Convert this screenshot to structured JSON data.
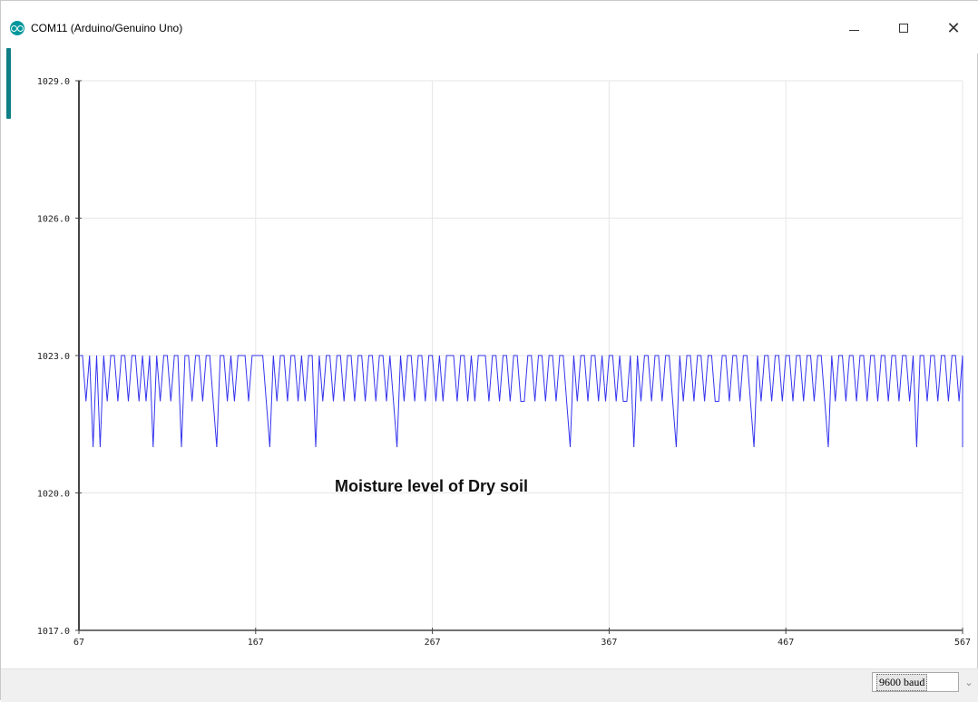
{
  "window": {
    "title": "COM11 (Arduino/Genuino Uno)",
    "icon": "arduino-logo-icon",
    "controls": {
      "minimize": "minimize-icon",
      "maximize": "maximize-icon",
      "close": "close-icon"
    }
  },
  "footer": {
    "baud_selected": "9600 baud",
    "dropdown_icon": "chevron-down-icon"
  },
  "colors": {
    "series": "#3333ee",
    "axis": "#444444",
    "grid": "#e6e6e6"
  },
  "chart_data": {
    "type": "line",
    "annotation": "Moisture level of Dry soil",
    "xlim": [
      67,
      567
    ],
    "ylim": [
      1017.0,
      1029.0
    ],
    "x_ticks": [
      67,
      167,
      267,
      367,
      467,
      567
    ],
    "x_tick_labels": [
      "67",
      "167",
      "267",
      "367",
      "467",
      "567"
    ],
    "y_ticks": [
      1017.0,
      1020.0,
      1023.0,
      1026.0,
      1029.0
    ],
    "y_tick_labels": [
      "1017.0",
      "1020.0",
      "1023.0",
      "1026.0",
      "1029.0"
    ],
    "grid": true,
    "series": [
      {
        "x_start": 67,
        "x_step": 2,
        "values": [
          1023,
          1023,
          1022,
          1023,
          1021,
          1023,
          1021,
          1023,
          1022,
          1023,
          1023,
          1022,
          1023,
          1023,
          1022,
          1023,
          1023,
          1022,
          1023,
          1022,
          1023,
          1021,
          1023,
          1022,
          1023,
          1023,
          1022,
          1023,
          1023,
          1021,
          1023,
          1023,
          1022,
          1023,
          1023,
          1022,
          1023,
          1023,
          1022,
          1021,
          1023,
          1023,
          1022,
          1023,
          1022,
          1023,
          1023,
          1023,
          1022,
          1023,
          1023,
          1023,
          1023,
          1022,
          1021,
          1023,
          1022,
          1023,
          1023,
          1022,
          1023,
          1023,
          1022,
          1023,
          1022,
          1023,
          1023,
          1021,
          1023,
          1022,
          1023,
          1023,
          1022,
          1023,
          1023,
          1022,
          1023,
          1023,
          1022,
          1023,
          1023,
          1022,
          1023,
          1023,
          1022,
          1023,
          1023,
          1022,
          1023,
          1022,
          1021,
          1023,
          1022,
          1023,
          1023,
          1022,
          1023,
          1023,
          1022,
          1023,
          1023,
          1022,
          1023,
          1022,
          1023,
          1023,
          1023,
          1022,
          1023,
          1023,
          1022,
          1023,
          1022,
          1023,
          1023,
          1023,
          1022,
          1023,
          1023,
          1022,
          1023,
          1023,
          1022,
          1023,
          1023,
          1022,
          1022,
          1023,
          1023,
          1022,
          1023,
          1023,
          1022,
          1023,
          1023,
          1022,
          1023,
          1023,
          1022,
          1021,
          1023,
          1022,
          1023,
          1023,
          1022,
          1023,
          1023,
          1022,
          1023,
          1022,
          1023,
          1023,
          1022,
          1023,
          1022,
          1022,
          1023,
          1021,
          1023,
          1022,
          1023,
          1023,
          1022,
          1023,
          1023,
          1022,
          1023,
          1023,
          1022,
          1021,
          1023,
          1022,
          1023,
          1023,
          1022,
          1023,
          1023,
          1022,
          1023,
          1023,
          1022,
          1022,
          1023,
          1023,
          1022,
          1023,
          1023,
          1022,
          1023,
          1023,
          1022,
          1021,
          1023,
          1022,
          1023,
          1023,
          1022,
          1023,
          1023,
          1022,
          1023,
          1023,
          1022,
          1023,
          1023,
          1022,
          1023,
          1023,
          1022,
          1023,
          1023,
          1022,
          1021,
          1023,
          1022,
          1023,
          1023,
          1022,
          1023,
          1023,
          1022,
          1023,
          1023,
          1022,
          1023,
          1023,
          1022,
          1023,
          1023,
          1022,
          1023,
          1023,
          1022,
          1023,
          1023,
          1022,
          1023,
          1021,
          1023,
          1023,
          1022,
          1023,
          1023,
          1022,
          1023,
          1023,
          1022,
          1023,
          1023,
          1022,
          1023,
          1023,
          1022,
          1023,
          1022,
          1023,
          1023,
          1022,
          1023,
          1021,
          1023,
          1023,
          1022,
          1023,
          1023,
          1022,
          1023,
          1023,
          1022,
          1023,
          1023,
          1022,
          1023,
          1023,
          1022,
          1023,
          1021,
          1023,
          1022,
          1023,
          1023,
          1022,
          1023,
          1023,
          1022,
          1023,
          1023,
          1022,
          1023,
          1023,
          1022,
          1023,
          1022,
          1023,
          1023,
          1022,
          1023,
          1023,
          1022,
          1023,
          1021,
          1023,
          1022,
          1023,
          1023,
          1022,
          1023,
          1022,
          1021,
          1023,
          1023,
          1022,
          1023,
          1023,
          1022,
          1023
        ]
      }
    ]
  }
}
